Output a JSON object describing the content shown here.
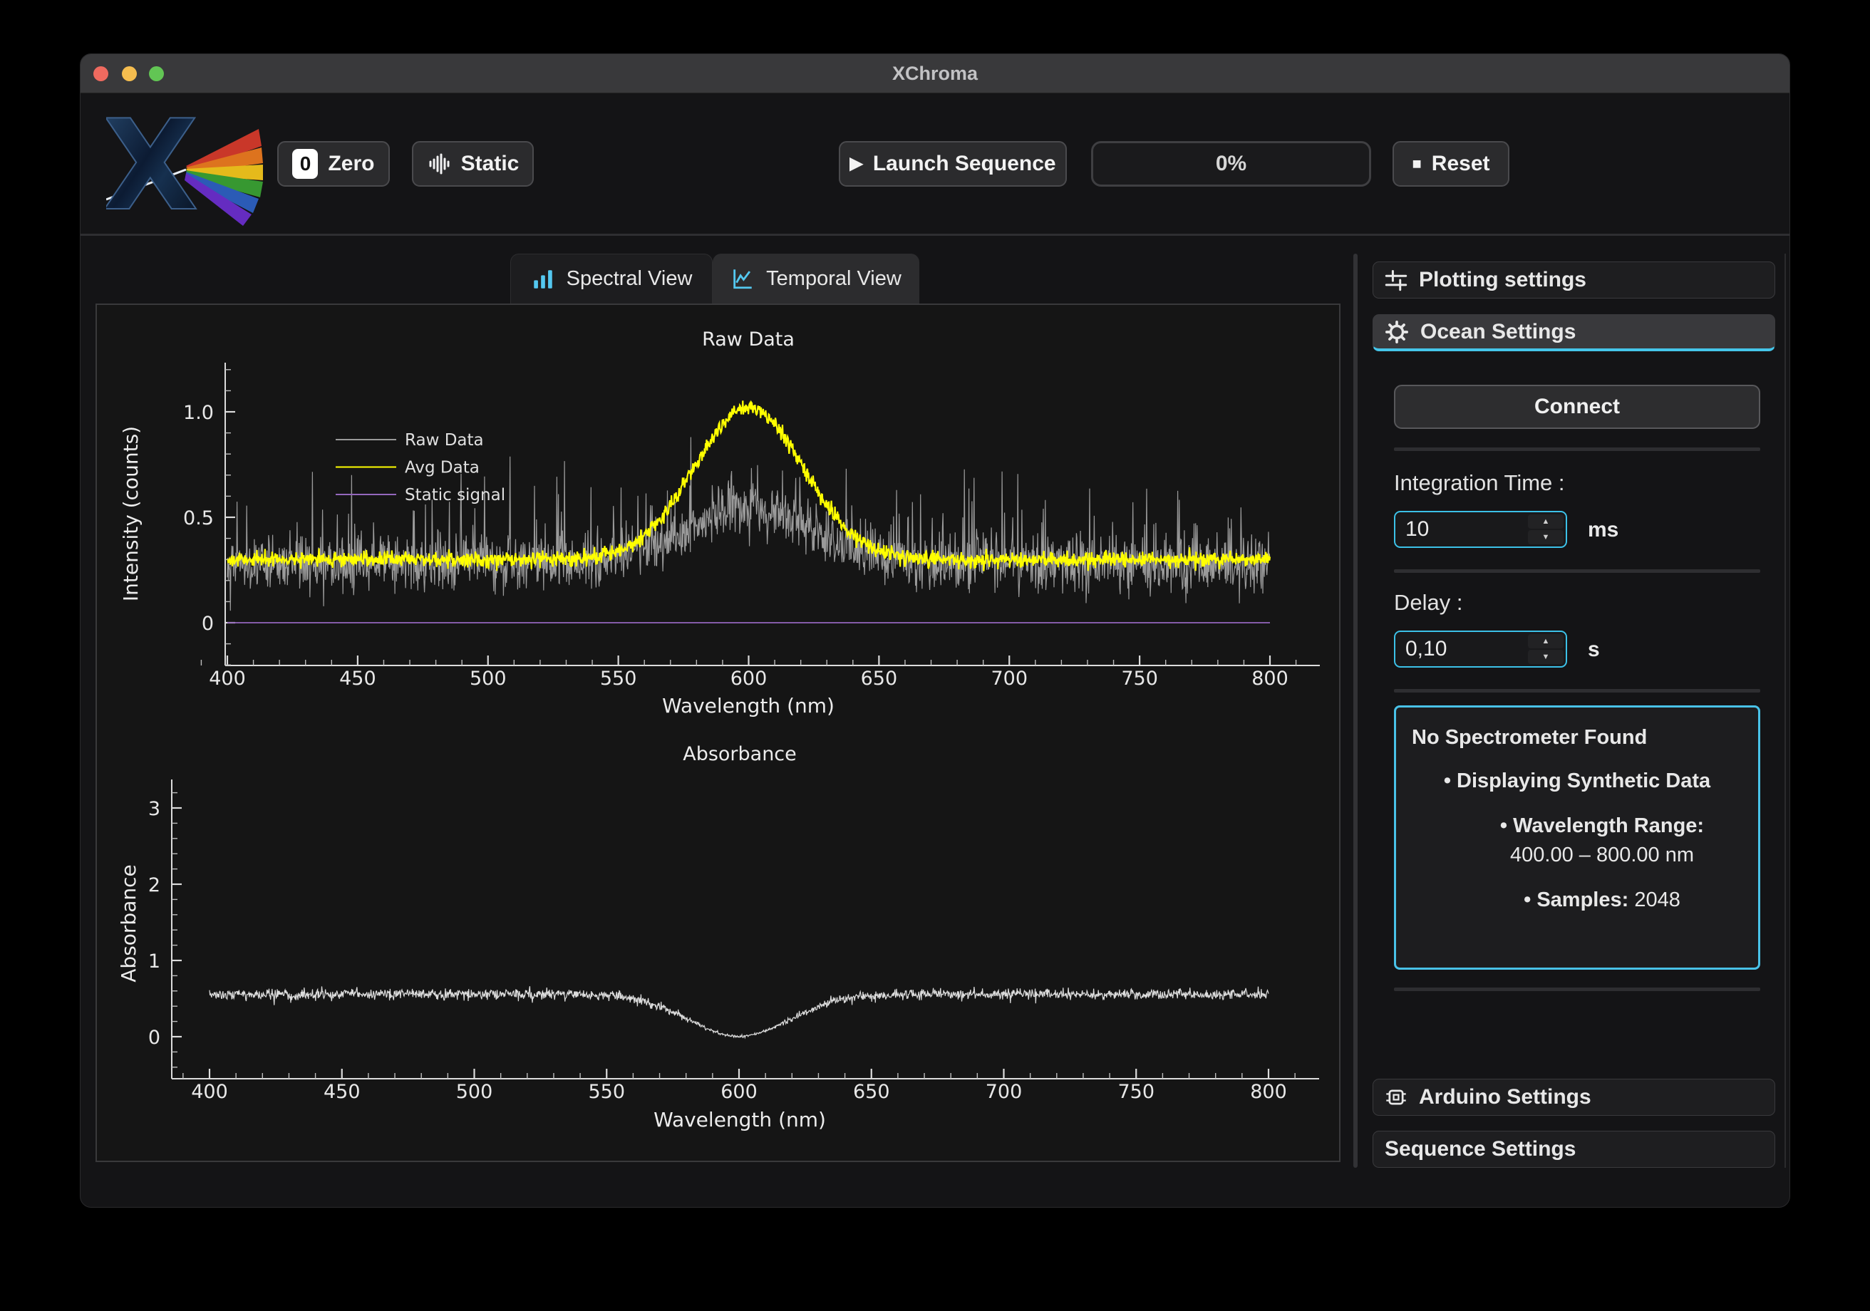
{
  "window": {
    "title": "XChroma"
  },
  "toolbar": {
    "zero_label": "Zero",
    "zero_icon_char": "0",
    "static_label": "Static",
    "launch_label": "Launch Sequence",
    "launch_icon_char": "▶",
    "progress_label": "0%",
    "reset_label": "Reset",
    "reset_icon_char": "■"
  },
  "tabs": [
    {
      "label": "Spectral View"
    },
    {
      "label": "Temporal View"
    }
  ],
  "sidebar": {
    "plotting_label": "Plotting settings",
    "ocean_label": "Ocean Settings",
    "connect_label": "Connect",
    "integration_label": "Integration Time :",
    "integration_value": "10",
    "integration_unit": "ms",
    "delay_label": "Delay :",
    "delay_value": "0,10",
    "delay_unit": "s",
    "info": {
      "title": "No Spectrometer Found",
      "synthetic": "• Displaying Synthetic Data",
      "wl_label": "• Wavelength Range:",
      "wl_value": "400.00 – 800.00 nm",
      "samples_label": "• Samples:",
      "samples_value": "2048"
    },
    "arduino_label": "Arduino Settings",
    "sequence_label": "Sequence Settings"
  },
  "colors": {
    "accent": "#45c6ea",
    "raw": "#9a9a9a",
    "avg": "#ffff00",
    "static": "#9467bd",
    "absorbance": "#dcdcdc",
    "traffic_red": "#ee6a5f",
    "traffic_yellow": "#f5bd4f",
    "traffic_green": "#62c554"
  },
  "chart_data": [
    {
      "type": "line",
      "title": "Raw Data",
      "xlabel": "Wavelength (nm)",
      "ylabel": "Intensity (counts)",
      "xlim": [
        381,
        819
      ],
      "ylim": [
        -0.2,
        1.23
      ],
      "xticks": [
        400,
        450,
        500,
        550,
        600,
        650,
        700,
        750,
        800
      ],
      "yticks": [
        0,
        0.5,
        1.0
      ],
      "ytick_labels": [
        "0",
        "0.5",
        "1.0"
      ],
      "x_minor_step": 10,
      "y_minor_step": 0.1,
      "grid": false,
      "legend_position": "upper left",
      "series": [
        {
          "name": "Raw Data",
          "color": "#9a9a9a",
          "model": "noisy_gaussian",
          "x_range": [
            400,
            800
          ],
          "points": 2048,
          "baseline": 0.28,
          "peak_center": 600,
          "peak_sigma": 24,
          "peak_amplitude": 0.27,
          "noise_sd": 0.068,
          "spike_probability": 0.05,
          "spike_max": 0.5,
          "max_value": 0.88
        },
        {
          "name": "Avg Data",
          "color": "#ffff00",
          "model": "noisy_gaussian",
          "x_range": [
            400,
            800
          ],
          "points": 2048,
          "baseline": 0.3,
          "peak_center": 600,
          "peak_sigma": 21,
          "peak_amplitude": 0.72,
          "noise_sd": 0.018,
          "spike_probability": 0,
          "spike_max": 0
        },
        {
          "name": "Static signal",
          "color": "#9467bd",
          "model": "constant",
          "x_range": [
            400,
            800
          ],
          "value": 0.0
        }
      ]
    },
    {
      "type": "line",
      "title": "Absorbance",
      "xlabel": "Wavelength (nm)",
      "ylabel": "Absorbance",
      "xlim": [
        381,
        819
      ],
      "ylim": [
        -0.55,
        3.37
      ],
      "xticks": [
        400,
        450,
        500,
        550,
        600,
        650,
        700,
        750,
        800
      ],
      "yticks": [
        0,
        1,
        2,
        3
      ],
      "ytick_labels": [
        "0",
        "1",
        "2",
        "3"
      ],
      "x_minor_step": 10,
      "y_minor_step": 0.2,
      "grid": false,
      "series": [
        {
          "name": "Absorbance",
          "color": "#dcdcdc",
          "model": "noisy_gaussian",
          "x_range": [
            400,
            800
          ],
          "points": 2048,
          "baseline": 0.555,
          "peak_center": 600,
          "peak_sigma": 19,
          "peak_amplitude": -0.55,
          "noise_sd": 0.035,
          "noise_dip_factor": 0.78,
          "spike_probability": 0,
          "spike_max": 0
        }
      ]
    }
  ]
}
